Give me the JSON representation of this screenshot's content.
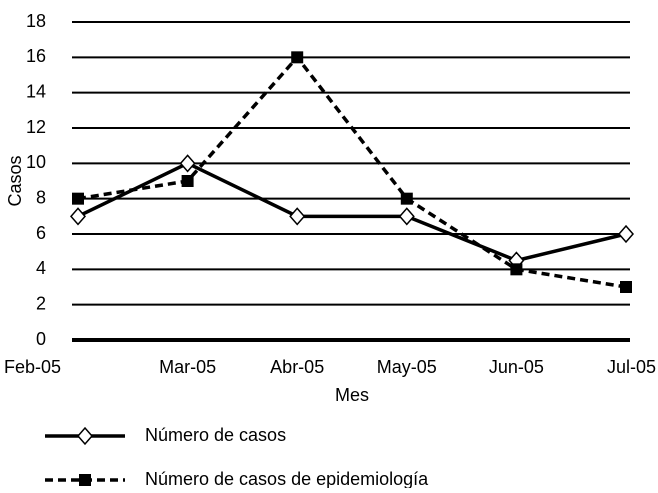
{
  "chart_data": {
    "type": "line",
    "xlabel": "Mes",
    "ylabel": "Casos",
    "categories": [
      "Feb-05",
      "Mar-05",
      "Abr-05",
      "May-05",
      "Jun-05",
      "Jul-05"
    ],
    "series": [
      {
        "name": "Número de casos",
        "color": "#000000",
        "marker": "diamond",
        "dash": false,
        "values": [
          7,
          10,
          7,
          7,
          4.5,
          6
        ]
      },
      {
        "name": "Número de casos de epidemiología",
        "color": "#000000",
        "marker": "square",
        "dash": true,
        "values": [
          8,
          9,
          16,
          8,
          4,
          3
        ]
      }
    ],
    "ylim": [
      0,
      18
    ],
    "yticks": [
      0,
      2,
      4,
      6,
      8,
      10,
      12,
      14,
      16,
      18
    ],
    "grid": true
  }
}
